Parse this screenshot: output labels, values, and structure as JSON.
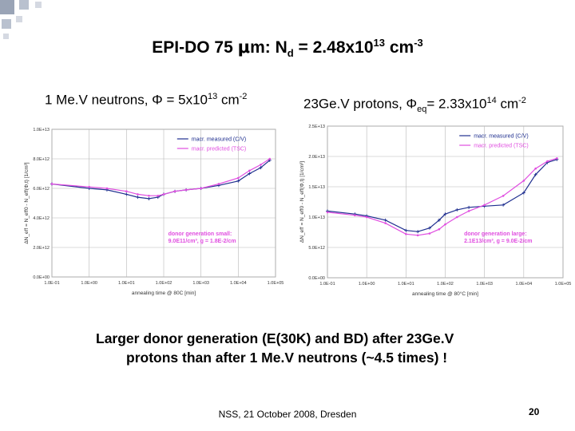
{
  "slide": {
    "title_prefix": "EPI-DO 75 ",
    "title_mu": "μ",
    "title_unit": "m: N",
    "title_sub": "d",
    "title_eq": " = 2.48x10",
    "title_exp": "13",
    "title_unit2": " cm",
    "title_exp2": "-3",
    "left_subtitle": {
      "text": "1 Me.V neutrons, Φ = 5x10",
      "exp": "13",
      "unit": " cm",
      "unit_exp": "-2"
    },
    "right_subtitle": {
      "text": "23Ge.V protons, Φ",
      "sub": "eq",
      "mid": "= 2.33x10",
      "exp": "14",
      "unit": " cm",
      "unit_exp": "-2"
    },
    "conclusion_line1": "Larger donor generation (E(30K) and BD) after 23Ge.V",
    "conclusion_line2": "protons than after 1 Me.V neutrons (~4.5 times) !",
    "footer": "NSS, 21 October 2008, Dresden",
    "page_number": "20"
  },
  "colors": {
    "measured": "#1f2f8f",
    "predicted": "#e04ee0",
    "grid": "#b8b8b8"
  },
  "chart_data": [
    {
      "type": "line",
      "xscale": "log",
      "xlim": [
        0.1,
        100000
      ],
      "ylim": [
        0,
        10000000000000.0
      ],
      "xlabel": "annealing time @ 80C [min]",
      "ylabel": "ΔN_eff = N_eff0 - N_eff(Φ,t) [1/cm³]",
      "x_ticks": [
        "1.0E-01",
        "1.0E+00",
        "1.0E+01",
        "1.0E+02",
        "1.0E+03",
        "1.0E+04",
        "1.0E+05"
      ],
      "y_ticks": [
        "0.0E+00",
        "2.0E+12",
        "4.0E+12",
        "6.0E+12",
        "8.0E+12",
        "1.0E+13"
      ],
      "legend_position": "top-right",
      "annotation_lines": [
        "donor generation small:",
        "9.0E11/cm³, g = 1.8E-2/cm"
      ],
      "series": [
        {
          "name": "macr. measured (C/V)",
          "x": [
            0.1,
            1,
            3,
            10,
            20,
            40,
            70,
            100,
            200,
            400,
            1000,
            3000,
            10000,
            20000,
            40000,
            70000
          ],
          "y": [
            6300000000000.0,
            6000000000000.0,
            5900000000000.0,
            5600000000000.0,
            5400000000000.0,
            5300000000000.0,
            5400000000000.0,
            5600000000000.0,
            5800000000000.0,
            5900000000000.0,
            6000000000000.0,
            6200000000000.0,
            6500000000000.0,
            7000000000000.0,
            7400000000000.0,
            7900000000000.0
          ]
        },
        {
          "name": "macr. predicted (TSC)",
          "x": [
            0.1,
            1,
            3,
            10,
            20,
            40,
            70,
            100,
            200,
            400,
            1000,
            3000,
            10000,
            20000,
            40000,
            70000
          ],
          "y": [
            6300000000000.0,
            6100000000000.0,
            6000000000000.0,
            5800000000000.0,
            5600000000000.0,
            5500000000000.0,
            5500000000000.0,
            5600000000000.0,
            5800000000000.0,
            5900000000000.0,
            6000000000000.0,
            6300000000000.0,
            6700000000000.0,
            7200000000000.0,
            7600000000000.0,
            8000000000000.0
          ]
        }
      ]
    },
    {
      "type": "line",
      "xscale": "log",
      "xlim": [
        0.1,
        100000
      ],
      "ylim": [
        0,
        25000000000000.0
      ],
      "xlabel": "annealing time @ 80°C [min]",
      "ylabel": "ΔN_eff = N_eff0 - N_eff(Φ,t) [1/cm³]",
      "x_ticks": [
        "1.0E-01",
        "1.0E+00",
        "1.0E+01",
        "1.0E+02",
        "1.0E+03",
        "1.0E+04",
        "1.0E+05"
      ],
      "y_ticks": [
        "0.0E+00",
        "5.0E+12",
        "1.0E+13",
        "1.5E+13",
        "2.0E+13",
        "2.5E+13"
      ],
      "legend_position": "top-right",
      "annotation_lines": [
        "donor generation large:",
        "2.1E13/cm³, g = 9.0E-2/cm"
      ],
      "series": [
        {
          "name": "macr. measured (C/V)",
          "x": [
            0.1,
            0.5,
            1,
            3,
            10,
            20,
            40,
            70,
            100,
            200,
            400,
            1000,
            3000,
            10000,
            20000,
            40000,
            70000
          ],
          "y": [
            11000000000000.0,
            10500000000000.0,
            10200000000000.0,
            9500000000000.0,
            7800000000000.0,
            7600000000000.0,
            8200000000000.0,
            9500000000000.0,
            10500000000000.0,
            11200000000000.0,
            11600000000000.0,
            11800000000000.0,
            12000000000000.0,
            14000000000000.0,
            17000000000000.0,
            19000000000000.0,
            19500000000000.0
          ]
        },
        {
          "name": "macr. predicted (TSC)",
          "x": [
            0.1,
            0.5,
            1,
            3,
            10,
            20,
            40,
            70,
            100,
            200,
            400,
            1000,
            3000,
            10000,
            20000,
            40000,
            70000
          ],
          "y": [
            10800000000000.0,
            10300000000000.0,
            10000000000000.0,
            9000000000000.0,
            7200000000000.0,
            7000000000000.0,
            7300000000000.0,
            8000000000000.0,
            8800000000000.0,
            10000000000000.0,
            11000000000000.0,
            12000000000000.0,
            13500000000000.0,
            16000000000000.0,
            18000000000000.0,
            19200000000000.0,
            19700000000000.0
          ]
        }
      ]
    }
  ]
}
